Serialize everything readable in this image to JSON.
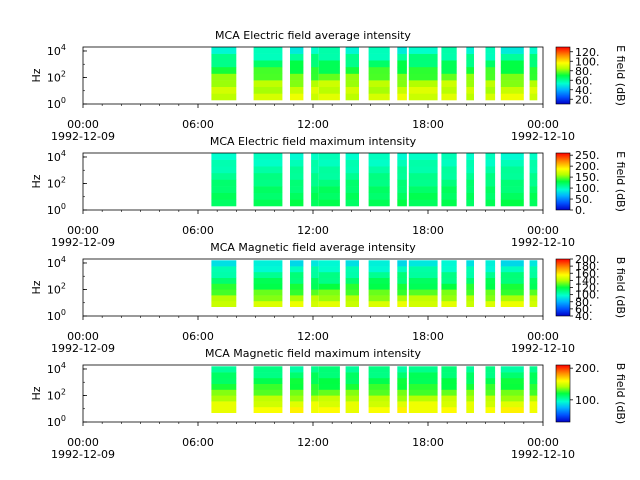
{
  "chart_data": [
    {
      "type": "heatmap",
      "title": "MCA  Electric field average intensity",
      "ylabel": "Hz",
      "y_scale": "log",
      "y_ticks": [
        {
          "exp": 0,
          "base": "10",
          "sup": "0"
        },
        {
          "exp": 2,
          "base": "10",
          "sup": "2"
        },
        {
          "exp": 4,
          "base": "10",
          "sup": "4"
        }
      ],
      "xlim_hours": [
        0,
        24
      ],
      "x_ticks": [
        {
          "hour": 0,
          "label": "00:00",
          "date": "1992-12-09"
        },
        {
          "hour": 6,
          "label": "06:00",
          "date": ""
        },
        {
          "hour": 12,
          "label": "12:00",
          "date": ""
        },
        {
          "hour": 18,
          "label": "18:00",
          "date": ""
        },
        {
          "hour": 24,
          "label": "00:00",
          "date": "1992-12-10"
        }
      ],
      "colorbar_label": "E field (dB)",
      "colorbar_range": [
        10,
        130
      ],
      "colorbar_ticks": [
        {
          "value": 20,
          "label": "20."
        },
        {
          "value": 40,
          "label": "40."
        },
        {
          "value": 60,
          "label": "60."
        },
        {
          "value": 80,
          "label": "80."
        },
        {
          "value": 100,
          "label": "100."
        },
        {
          "value": 120,
          "label": "120."
        }
      ],
      "freq_range_exp": [
        0.3,
        4.3
      ],
      "data_segments_hours": [
        [
          6.7,
          8.0
        ],
        [
          8.9,
          10.4
        ],
        [
          10.8,
          11.5
        ],
        [
          11.9,
          12.3
        ],
        [
          12.3,
          13.4
        ],
        [
          13.7,
          14.4
        ],
        [
          14.9,
          16.0
        ],
        [
          16.4,
          16.9
        ],
        [
          17.0,
          18.5
        ],
        [
          18.7,
          19.5
        ],
        [
          20.0,
          20.4
        ],
        [
          21.0,
          21.5
        ],
        [
          21.8,
          23.0
        ],
        [
          23.3,
          23.7
        ]
      ],
      "intensity_profile": [
        {
          "exp": 0.5,
          "value": 90
        },
        {
          "exp": 1.5,
          "value": 85
        },
        {
          "exp": 2.5,
          "value": 72
        },
        {
          "exp": 3.5,
          "value": 60
        },
        {
          "exp": 4.2,
          "value": 52
        }
      ]
    },
    {
      "type": "heatmap",
      "title": "MCA  Electric field maximum intensity",
      "ylabel": "Hz",
      "y_scale": "log",
      "y_ticks": [
        {
          "exp": 0,
          "base": "10",
          "sup": "0"
        },
        {
          "exp": 2,
          "base": "10",
          "sup": "2"
        },
        {
          "exp": 4,
          "base": "10",
          "sup": "4"
        }
      ],
      "xlim_hours": [
        0,
        24
      ],
      "x_ticks": [
        {
          "hour": 0,
          "label": "00:00",
          "date": "1992-12-09"
        },
        {
          "hour": 6,
          "label": "06:00",
          "date": ""
        },
        {
          "hour": 12,
          "label": "12:00",
          "date": ""
        },
        {
          "hour": 18,
          "label": "18:00",
          "date": ""
        },
        {
          "hour": 24,
          "label": "00:00",
          "date": "1992-12-10"
        }
      ],
      "colorbar_label": "E field (dB)",
      "colorbar_range": [
        0,
        260
      ],
      "colorbar_ticks": [
        {
          "value": 0,
          "label": "0."
        },
        {
          "value": 50,
          "label": "50."
        },
        {
          "value": 100,
          "label": "100."
        },
        {
          "value": 150,
          "label": "150."
        },
        {
          "value": 200,
          "label": "200."
        },
        {
          "value": 250,
          "label": "250."
        }
      ],
      "freq_range_exp": [
        0.3,
        4.3
      ],
      "data_segments_hours": [
        [
          6.7,
          8.0
        ],
        [
          8.9,
          10.4
        ],
        [
          10.8,
          11.5
        ],
        [
          11.9,
          12.3
        ],
        [
          12.3,
          13.4
        ],
        [
          13.7,
          14.4
        ],
        [
          14.9,
          16.0
        ],
        [
          16.4,
          16.9
        ],
        [
          17.0,
          18.5
        ],
        [
          18.7,
          19.5
        ],
        [
          20.0,
          20.4
        ],
        [
          21.0,
          21.5
        ],
        [
          21.8,
          23.0
        ],
        [
          23.3,
          23.7
        ]
      ],
      "intensity_profile": [
        {
          "exp": 0.5,
          "value": 125
        },
        {
          "exp": 1.5,
          "value": 120
        },
        {
          "exp": 2.5,
          "value": 110
        },
        {
          "exp": 3.5,
          "value": 100
        },
        {
          "exp": 4.2,
          "value": 95
        }
      ]
    },
    {
      "type": "heatmap",
      "title": "MCA  Magnetic field average intensity",
      "ylabel": "Hz",
      "y_scale": "log",
      "y_ticks": [
        {
          "exp": 0,
          "base": "10",
          "sup": "0"
        },
        {
          "exp": 2,
          "base": "10",
          "sup": "2"
        },
        {
          "exp": 4,
          "base": "10",
          "sup": "4"
        }
      ],
      "xlim_hours": [
        0,
        24
      ],
      "x_ticks": [
        {
          "hour": 0,
          "label": "00:00",
          "date": "1992-12-09"
        },
        {
          "hour": 6,
          "label": "06:00",
          "date": ""
        },
        {
          "hour": 12,
          "label": "12:00",
          "date": ""
        },
        {
          "hour": 18,
          "label": "18:00",
          "date": ""
        },
        {
          "hour": 24,
          "label": "00:00",
          "date": "1992-12-10"
        }
      ],
      "colorbar_label": "B field (dB)",
      "colorbar_range": [
        40,
        200
      ],
      "colorbar_ticks": [
        {
          "value": 40,
          "label": "40."
        },
        {
          "value": 60,
          "label": "60."
        },
        {
          "value": 80,
          "label": "80."
        },
        {
          "value": 100,
          "label": "100."
        },
        {
          "value": 120,
          "label": "120."
        },
        {
          "value": 140,
          "label": "140."
        },
        {
          "value": 160,
          "label": "160."
        },
        {
          "value": 180,
          "label": "180."
        },
        {
          "value": 200,
          "label": "200."
        }
      ],
      "freq_range_exp": [
        0.7,
        4.2
      ],
      "data_segments_hours": [
        [
          6.7,
          8.0
        ],
        [
          8.9,
          10.4
        ],
        [
          10.8,
          11.5
        ],
        [
          11.9,
          12.3
        ],
        [
          12.3,
          13.4
        ],
        [
          13.7,
          14.4
        ],
        [
          14.9,
          16.0
        ],
        [
          16.4,
          16.9
        ],
        [
          17.0,
          18.5
        ],
        [
          18.7,
          19.5
        ],
        [
          20.0,
          20.4
        ],
        [
          21.0,
          21.5
        ],
        [
          21.8,
          23.0
        ],
        [
          23.3,
          23.7
        ]
      ],
      "intensity_profile": [
        {
          "exp": 0.8,
          "value": 150
        },
        {
          "exp": 1.5,
          "value": 135
        },
        {
          "exp": 2.5,
          "value": 115
        },
        {
          "exp": 3.3,
          "value": 105
        },
        {
          "exp": 4.1,
          "value": 90
        }
      ]
    },
    {
      "type": "heatmap",
      "title": "MCA  Magnetic field maximum intensity",
      "ylabel": "Hz",
      "y_scale": "log",
      "y_ticks": [
        {
          "exp": 0,
          "base": "10",
          "sup": "0"
        },
        {
          "exp": 2,
          "base": "10",
          "sup": "2"
        },
        {
          "exp": 4,
          "base": "10",
          "sup": "4"
        }
      ],
      "xlim_hours": [
        0,
        24
      ],
      "x_ticks": [
        {
          "hour": 0,
          "label": "00:00",
          "date": "1992-12-09"
        },
        {
          "hour": 6,
          "label": "06:00",
          "date": ""
        },
        {
          "hour": 12,
          "label": "12:00",
          "date": ""
        },
        {
          "hour": 18,
          "label": "18:00",
          "date": ""
        },
        {
          "hour": 24,
          "label": "00:00",
          "date": "1992-12-10"
        }
      ],
      "colorbar_label": "B field (dB)",
      "colorbar_range": [
        30,
        210
      ],
      "colorbar_ticks": [
        {
          "value": 100,
          "label": "100."
        },
        {
          "value": 200,
          "label": "200."
        }
      ],
      "freq_range_exp": [
        0.7,
        4.2
      ],
      "data_segments_hours": [
        [
          6.7,
          8.0
        ],
        [
          8.9,
          10.4
        ],
        [
          10.8,
          11.5
        ],
        [
          11.9,
          12.3
        ],
        [
          12.3,
          13.4
        ],
        [
          13.7,
          14.4
        ],
        [
          14.9,
          16.0
        ],
        [
          16.4,
          16.9
        ],
        [
          17.0,
          18.5
        ],
        [
          18.7,
          19.5
        ],
        [
          20.0,
          20.4
        ],
        [
          21.0,
          21.5
        ],
        [
          21.8,
          23.0
        ],
        [
          23.3,
          23.7
        ]
      ],
      "intensity_profile": [
        {
          "exp": 0.8,
          "value": 160
        },
        {
          "exp": 1.5,
          "value": 150
        },
        {
          "exp": 2.5,
          "value": 125
        },
        {
          "exp": 3.3,
          "value": 115
        },
        {
          "exp": 4.1,
          "value": 105
        }
      ]
    }
  ]
}
